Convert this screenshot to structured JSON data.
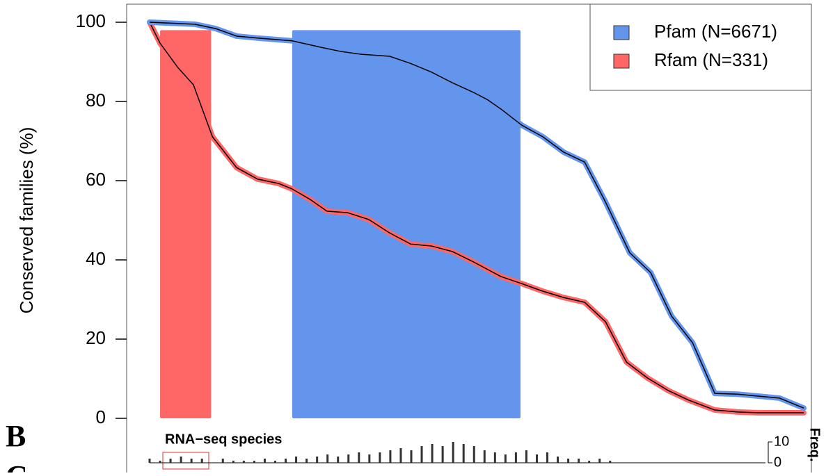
{
  "chart_data": {
    "type": "line",
    "ylabel": "Conserved families (%)",
    "ylim": [
      0,
      100
    ],
    "yticks": [
      0,
      20,
      40,
      60,
      80,
      100
    ],
    "xlim": [
      0,
      100
    ],
    "legend": "upper right",
    "highlights": [
      {
        "color": "#ff6666",
        "x": [
          1.6,
          9.4
        ]
      },
      {
        "color": "#6495ed",
        "x": [
          21.8,
          56.7
        ]
      }
    ],
    "series": [
      {
        "name": "Pfam (N=6671)",
        "color": "#6495ed",
        "x": [
          0,
          2.7,
          6.9,
          10.1,
          13.3,
          16.5,
          21.8,
          26.1,
          29.3,
          32.4,
          36.7,
          39.9,
          43.1,
          46.3,
          49.5,
          51.6,
          53.7,
          56.9,
          60.1,
          63.3,
          66.5,
          69.7,
          73.4,
          76.6,
          79.8,
          83.0,
          86.4,
          89.9,
          93.1,
          96.3,
          100
        ],
        "values": [
          100,
          99.8,
          99.5,
          98.4,
          96.5,
          96.0,
          95.3,
          93.7,
          92.6,
          91.9,
          91.4,
          89.6,
          87.4,
          84.7,
          82.3,
          80.5,
          78.1,
          74.0,
          71.1,
          67.2,
          64.7,
          54.6,
          41.8,
          36.8,
          25.8,
          19.1,
          6.3,
          6.1,
          5.6,
          5.1,
          2.6
        ]
      },
      {
        "name": "Rfam (N=331)",
        "color": "#ff6666",
        "x": [
          0,
          1.6,
          4.3,
          6.7,
          9.6,
          13.3,
          16.5,
          19.7,
          21.8,
          24.5,
          27.1,
          30.3,
          33.5,
          36.7,
          39.9,
          43.1,
          46.3,
          49.5,
          53.7,
          56.9,
          60.1,
          63.3,
          66.5,
          69.7,
          72.9,
          76.1,
          79.3,
          82.4,
          86.4,
          89.9,
          93.1,
          100
        ],
        "values": [
          100,
          94.7,
          88.6,
          84.2,
          71.1,
          63.3,
          60.4,
          59.3,
          57.9,
          55.3,
          52.3,
          51.9,
          50.2,
          46.8,
          44.0,
          43.5,
          42.1,
          39.5,
          35.8,
          34.0,
          32.1,
          30.5,
          29.3,
          24.4,
          14.2,
          10.2,
          7.0,
          4.6,
          2.1,
          1.6,
          1.4,
          1.4
        ]
      }
    ],
    "histogram": {
      "title": "RNA−seq species",
      "ylabel": "Freq.",
      "ylim": [
        0,
        10
      ],
      "yticks": [
        0,
        10
      ],
      "x": [
        0,
        1.6,
        3.2,
        4.8,
        6.4,
        8,
        9.6,
        11.2,
        12.8,
        14.4,
        16,
        17.6,
        19.2,
        20.8,
        22.4,
        24,
        25.6,
        27.2,
        28.8,
        30.4,
        32,
        33.6,
        35.2,
        36.8,
        38.4,
        40,
        41.6,
        43.2,
        44.8,
        46.4,
        48,
        49.6,
        51.2,
        52.8,
        54.4,
        56,
        57.6,
        59.2,
        60.8,
        62.4,
        64,
        65.6,
        67.2,
        68.8,
        70.4
      ],
      "values": [
        2,
        1,
        2,
        3,
        2,
        2,
        0,
        2,
        1,
        1,
        1,
        2,
        1,
        2,
        3,
        2,
        3,
        4,
        3,
        4,
        5,
        4,
        5,
        6,
        7,
        6,
        8,
        9,
        8,
        10,
        9,
        8,
        6,
        5,
        4,
        5,
        6,
        4,
        5,
        3,
        2,
        2,
        1,
        2,
        1
      ]
    },
    "panel_labels": [
      "B",
      "C"
    ]
  }
}
